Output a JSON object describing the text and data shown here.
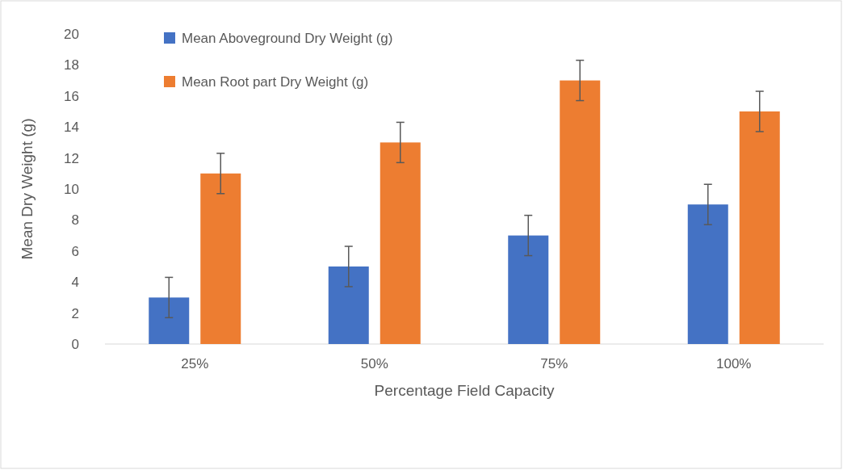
{
  "chart_data": {
    "type": "bar",
    "xlabel": "Percentage Field Capacity",
    "ylabel": "Mean Dry Weight (g)",
    "categories": [
      "25%",
      "50%",
      "75%",
      "100%"
    ],
    "series": [
      {
        "name": "Mean Aboveground Dry Weight (g)",
        "color": "#4472c4",
        "values": [
          3,
          5,
          7,
          9
        ],
        "errors": [
          1.3,
          1.3,
          1.3,
          1.3
        ]
      },
      {
        "name": "Mean Root part Dry Weight (g)",
        "color": "#ed7d31",
        "values": [
          11,
          13,
          17,
          15
        ],
        "errors": [
          1.3,
          1.3,
          1.3,
          1.3
        ]
      }
    ],
    "ylim": [
      0,
      20
    ],
    "yticks": [
      0,
      2,
      4,
      6,
      8,
      10,
      12,
      14,
      16,
      18,
      20
    ],
    "grid": false,
    "legend": "top left"
  }
}
